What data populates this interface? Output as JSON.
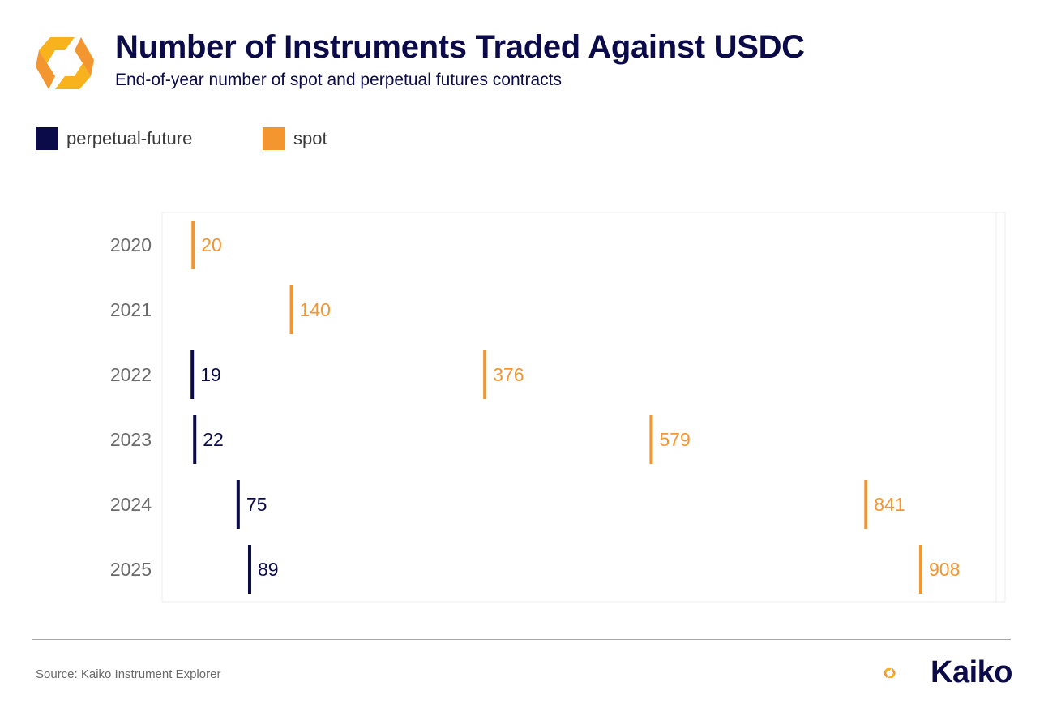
{
  "header": {
    "logo": "kaiko-logo-icon",
    "title": "Number of Instruments Traded Against USDC",
    "subtitle": "End-of-year number of spot and perpetual futures contracts"
  },
  "legend": {
    "items": [
      {
        "label": "perpetual-future",
        "color": "#0b0b4a"
      },
      {
        "label": "spot",
        "color": "#f3962f"
      }
    ]
  },
  "chart_data": {
    "type": "dot-strip",
    "orientation": "horizontal",
    "categories": [
      "2020",
      "2021",
      "2022",
      "2023",
      "2024",
      "2025"
    ],
    "series": [
      {
        "name": "perpetual-future",
        "color": "#0b0b4a",
        "values": [
          null,
          null,
          19,
          22,
          75,
          89
        ]
      },
      {
        "name": "spot",
        "color": "#f3962f",
        "values": [
          20,
          140,
          376,
          579,
          841,
          908
        ]
      }
    ],
    "xlim": [
      0,
      980
    ],
    "x_axis_ticks_shown": false,
    "grid": false,
    "legend_position": "top-left",
    "data_labels": true
  },
  "footer": {
    "source": "Source: Kaiko Instrument Explorer",
    "brand_name": "Kaiko",
    "brand_logo": "kaiko-logo-icon"
  }
}
